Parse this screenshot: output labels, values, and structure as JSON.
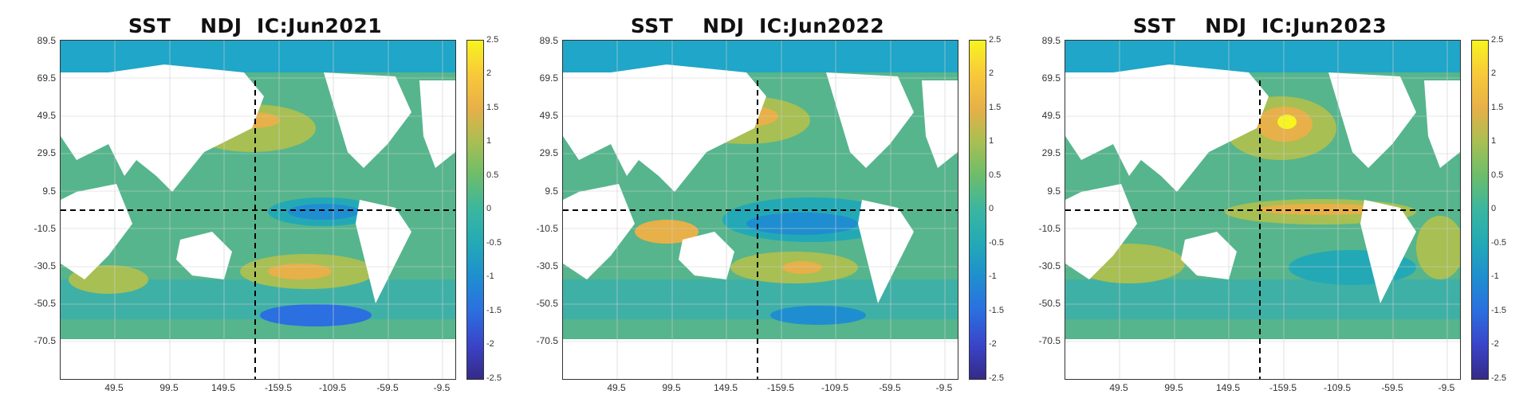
{
  "panels": [
    {
      "title": "SST    NDJ  IC:Jun2021",
      "pattern": "weak-cold"
    },
    {
      "title": "SST    NDJ  IC:Jun2022",
      "pattern": "moderate-cold"
    },
    {
      "title": "SST    NDJ  IC:Jun2023",
      "pattern": "warm-enso"
    }
  ],
  "y_ticks": [
    "89.5",
    "69.5",
    "49.5",
    "29.5",
    "9.5",
    "-10.5",
    "-30.5",
    "-50.5",
    "-70.5"
  ],
  "x_ticks": [
    "49.5",
    "99.5",
    "149.5",
    "-159.5",
    "-109.5",
    "-59.5",
    "-9.5"
  ],
  "colorbar_ticks": [
    "2.5",
    "2",
    "1.5",
    "1",
    "0.5",
    "0",
    "-0.5",
    "-1",
    "-1.5",
    "-2",
    "-2.5"
  ],
  "colors": {
    "ocean_base": "#56b58c",
    "warm_1": "#a8bf53",
    "warm_2": "#e7b048",
    "warm_3": "#f7f41f",
    "cool_1": "#23a9b6",
    "cool_2": "#1f8ed0",
    "cool_3": "#2b6fe0",
    "sea_ice": "#1fa6c8",
    "land": "#ffffff"
  }
}
